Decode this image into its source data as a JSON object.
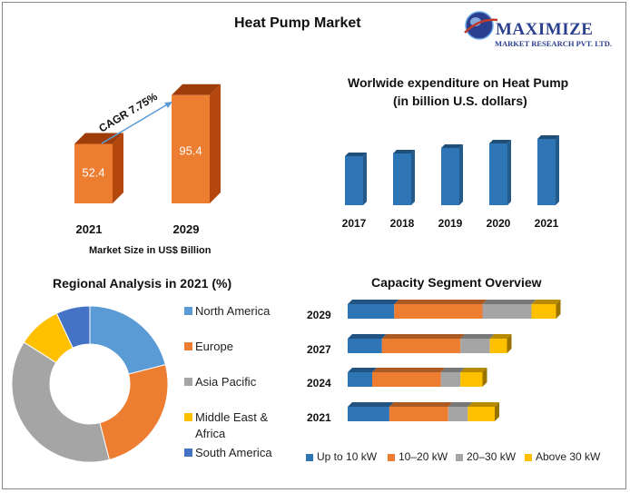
{
  "page": {
    "title": "Heat Pump Market",
    "logo": {
      "name": "MAXIMIZE",
      "sub": "MARKET RESEARCH PVT. LTD."
    }
  },
  "colors": {
    "orange": "#ED7D31",
    "blue": "#2E75B6",
    "gray": "#A5A5A5",
    "yellow": "#FFC000",
    "darkblue": "#4472C4",
    "lightblue": "#5B9BD5"
  },
  "chart_data": [
    {
      "type": "bar",
      "categories": [
        "2021",
        "2029"
      ],
      "values": [
        52.4,
        95.4
      ],
      "xlabel": "Market Size in US$ Billion",
      "annotation": "CAGR 7.75%"
    },
    {
      "type": "bar",
      "title": "Worlwide expenditure on Heat Pump",
      "subtitle": "(in billion U.S. dollars)",
      "categories": [
        "2017",
        "2018",
        "2019",
        "2020",
        "2021"
      ],
      "values": [
        54,
        57,
        63,
        68,
        73
      ],
      "ylim": [
        0,
        100
      ]
    },
    {
      "type": "pie",
      "title": "Regional Analysis in 2021 (%)",
      "labels": [
        "North America",
        "Europe",
        "Asia Pacific",
        "Middle East & Africa",
        "South America"
      ],
      "values": [
        21,
        25,
        38,
        9,
        7
      ]
    },
    {
      "type": "bar",
      "title": "Capacity Segment Overview",
      "categories": [
        "2029",
        "2027",
        "2024",
        "2021"
      ],
      "series": [
        {
          "name": "Up to 10 kW",
          "values": [
            19,
            14,
            10,
            17
          ]
        },
        {
          "name": "10–20 kW",
          "values": [
            36,
            32,
            28,
            24
          ]
        },
        {
          "name": "20–30 kW",
          "values": [
            20,
            12,
            8,
            8
          ]
        },
        {
          "name": "Above 30 kW",
          "values": [
            10,
            7,
            9,
            11
          ]
        }
      ]
    }
  ]
}
